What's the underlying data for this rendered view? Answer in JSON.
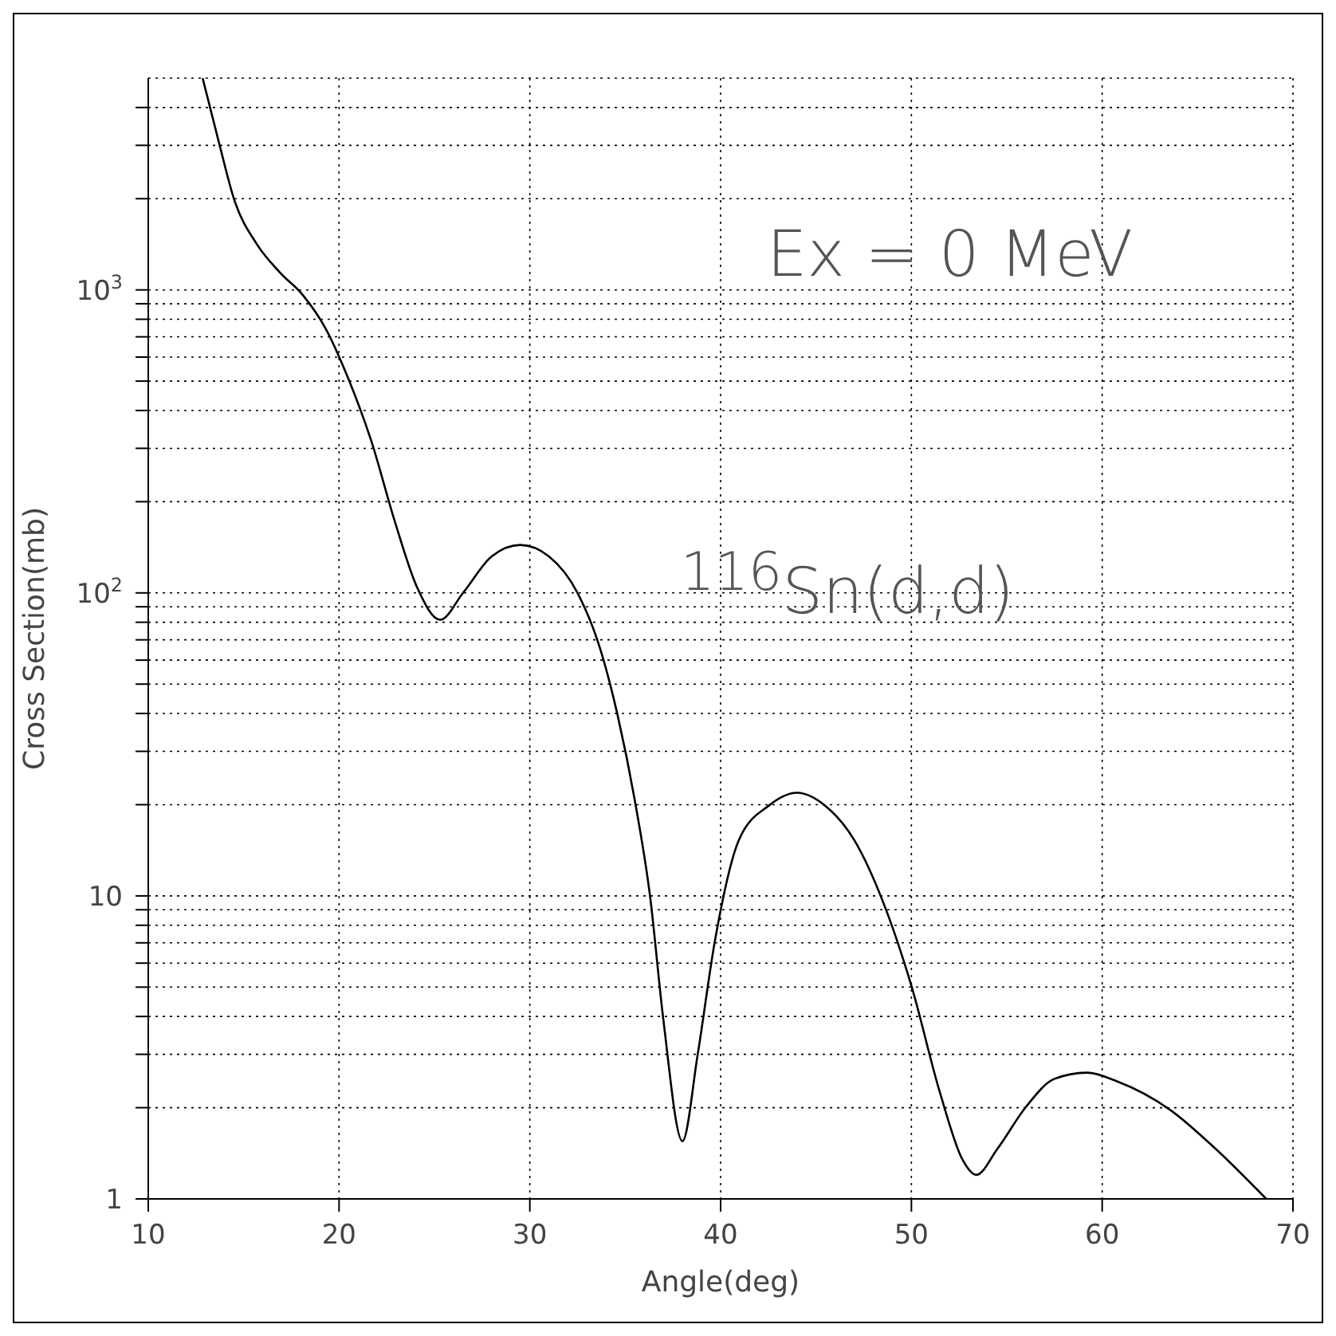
{
  "chart_data": {
    "type": "line",
    "xlabel": "Angle(deg)",
    "ylabel": "Cross Section(mb)",
    "annotations": [
      "Ex = 0 MeV",
      "$^{116}$Sn(d,d)"
    ],
    "log": true,
    "grid": true,
    "legend": false,
    "marker": "none",
    "line_style": "solid",
    "xlim": [
      10,
      70
    ],
    "xticks": [
      10,
      20,
      30,
      40,
      50,
      60,
      70
    ],
    "ylim": [
      1,
      5000
    ],
    "yticks": [
      1,
      {
        "value": 2,
        "label": null
      },
      {
        "value": 3,
        "label": null
      },
      {
        "value": 4,
        "label": null
      },
      {
        "value": 5,
        "label": null
      },
      {
        "value": 6,
        "label": null
      },
      {
        "value": 7,
        "label": null
      },
      {
        "value": 8,
        "label": null
      },
      {
        "value": 9,
        "label": null
      },
      10,
      {
        "value": 20,
        "label": null
      },
      {
        "value": 30,
        "label": null
      },
      {
        "value": 40,
        "label": null
      },
      {
        "value": 50,
        "label": null
      },
      {
        "value": 60,
        "label": null
      },
      {
        "value": 70,
        "label": null
      },
      {
        "value": 80,
        "label": null
      },
      {
        "value": 90,
        "label": null
      },
      {
        "value": 100,
        "label": "10$^{2}$"
      },
      {
        "value": 200,
        "label": null
      },
      {
        "value": 300,
        "label": null
      },
      {
        "value": 400,
        "label": null
      },
      {
        "value": 500,
        "label": null
      },
      {
        "value": 600,
        "label": null
      },
      {
        "value": 700,
        "label": null
      },
      {
        "value": 800,
        "label": null
      },
      {
        "value": 900,
        "label": null
      },
      {
        "value": 1000,
        "label": "10$^{3}$"
      },
      {
        "value": 2000,
        "label": null
      },
      {
        "value": 3000,
        "label": null
      },
      {
        "value": 4000,
        "label": null
      }
    ],
    "series": [
      {
        "color": "#000000",
        "x": [
          12.85,
          13.75,
          14.5,
          15.7,
          16.9,
          18.1,
          19.3,
          20.5,
          21.7,
          22.9,
          24.1,
          25.3,
          26.5,
          28.0,
          29.5,
          31.0,
          32.5,
          33.7,
          34.6,
          35.5,
          36.3,
          37.0,
          38.0,
          38.8,
          39.7,
          40.96,
          42.5,
          44.0,
          45.5,
          47.0,
          48.5,
          50.0,
          51.5,
          52.7,
          53.4,
          54.5,
          56.0,
          57.5,
          59.2,
          60.8,
          63.55,
          65.96,
          68.6
        ],
        "values": [
          5000,
          2985,
          1990,
          1413,
          1142,
          962,
          745,
          507,
          316,
          174,
          104,
          81.5,
          100,
          132,
          144,
          132,
          100,
          65,
          39.5,
          20.7,
          10,
          3.9,
          1.55,
          3.0,
          7.1,
          15.3,
          19.8,
          21.9,
          19.8,
          15.3,
          9.6,
          5.05,
          2.24,
          1.34,
          1.2,
          1.46,
          2.01,
          2.49,
          2.61,
          2.44,
          1.97,
          1.46,
          1.0
        ]
      }
    ]
  }
}
